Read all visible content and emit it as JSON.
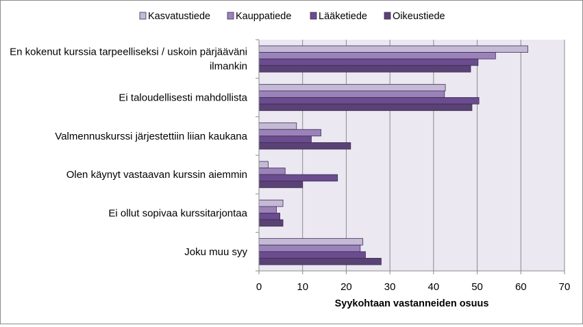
{
  "colors": {
    "plot_background": "#ebe8f1",
    "gridline": "#8a8a8a",
    "axis": "#8a8a8a",
    "bar_border": "#3b2c52",
    "series": [
      "#c5bad6",
      "#9b83ba",
      "#6b4c8f",
      "#5a4275"
    ]
  },
  "chart_data": {
    "type": "bar",
    "orientation": "horizontal",
    "title": "",
    "xlabel": "Syykohtaan vastanneiden osuus",
    "ylabel": "",
    "xlim": [
      0,
      70
    ],
    "xticks": [
      "0",
      "10",
      "20",
      "30",
      "40",
      "50",
      "60",
      "70"
    ],
    "grid": "vertical",
    "legend_position": "top",
    "categories": [
      [
        "En kokenut kurssia tarpeelliseksi / uskoin pärjääväni",
        "ilmankin"
      ],
      [
        "Ei taloudellisesti mahdollista"
      ],
      [
        "Valmennuskurssi järjestettiin liian kaukana"
      ],
      [
        "Olen käynyt vastaavan kurssin aiemmin"
      ],
      [
        "Ei ollut sopivaa kurssitarjontaa"
      ],
      [
        "Joku muu syy"
      ]
    ],
    "series": [
      {
        "name": "Kasvatustiede",
        "values": [
          61.6,
          42.7,
          8.6,
          2.1,
          5.5,
          23.8
        ]
      },
      {
        "name": "Kauppatiede",
        "values": [
          54.2,
          42.5,
          14.2,
          6.0,
          4.0,
          23.2
        ]
      },
      {
        "name": "Lääketiede",
        "values": [
          50.2,
          50.4,
          12.0,
          18.0,
          4.8,
          24.4
        ]
      },
      {
        "name": "Oikeustiede",
        "values": [
          48.5,
          48.8,
          21.0,
          10.0,
          5.5,
          28.0
        ]
      }
    ]
  }
}
